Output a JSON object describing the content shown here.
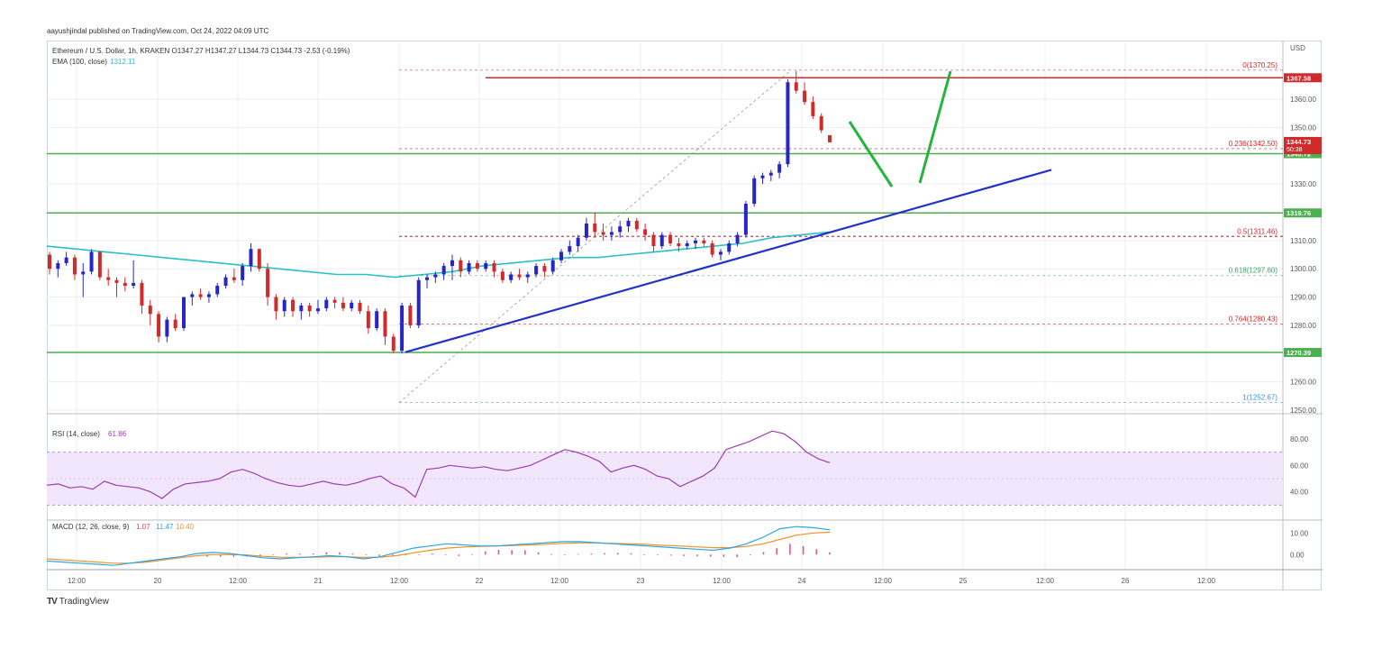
{
  "header": {
    "publisher": "aayushjindal published on TradingView.com, Oct 24, 2022 04:09 UTC"
  },
  "footer": {
    "logo_mark": "TV",
    "logo_text": "TradingView"
  },
  "colors": {
    "bull": "#2626c8",
    "bear": "#d12a2a",
    "ema": "#2bc0c8",
    "green_level": "#4caf50",
    "trend_line": "#2431c8",
    "projection": "#27b33f",
    "rsi": "#9c3eb0",
    "rsi_band": "#f1e6fb",
    "macd": "#2aa5e6",
    "signal": "#f39125",
    "hist": "#e0405a",
    "fib_red": "#d12a2a",
    "fib_green": "#3aa86b",
    "fib_blue": "#3d8de8"
  },
  "chart_data": [
    {
      "type": "candlestick",
      "title": "Ethereum / U.S. Dollar, 1h, KRAKEN",
      "ohlc_label": "O1347.27 H1347.27 L1344.73 C1344.73 -2.53 (-0.19%)",
      "currency": "USD",
      "indicator": {
        "name": "EMA (100, close)",
        "value": "1312.11"
      },
      "ylim": [
        1250,
        1375
      ],
      "y_ticks": [
        "1360.00",
        "1350.00",
        "1330.00",
        "1310.00",
        "1300.00",
        "1290.00",
        "1280.00",
        "1260.00",
        "1250.00"
      ],
      "x_ticks": [
        "12:00",
        "20",
        "12:00",
        "21",
        "12:00",
        "22",
        "12:00",
        "23",
        "12:00",
        "24",
        "12:00",
        "25",
        "12:00",
        "26",
        "12:00"
      ],
      "candles": [
        [
          1305,
          1306,
          1298,
          1300
        ],
        [
          1300,
          1303,
          1297,
          1302
        ],
        [
          1302,
          1306,
          1301,
          1304
        ],
        [
          1304,
          1305,
          1296,
          1298
        ],
        [
          1298,
          1302,
          1290,
          1299
        ],
        [
          1299,
          1307,
          1298,
          1306
        ],
        [
          1306,
          1306,
          1296,
          1297
        ],
        [
          1297,
          1300,
          1294,
          1296
        ],
        [
          1296,
          1297,
          1290,
          1295
        ],
        [
          1295,
          1297,
          1292,
          1294
        ],
        [
          1294,
          1303,
          1293,
          1295
        ],
        [
          1295,
          1296,
          1284,
          1287
        ],
        [
          1287,
          1289,
          1280,
          1284
        ],
        [
          1284,
          1285,
          1274,
          1276
        ],
        [
          1276,
          1283,
          1274,
          1282
        ],
        [
          1282,
          1284,
          1278,
          1279
        ],
        [
          1279,
          1290,
          1278,
          1290
        ],
        [
          1290,
          1292,
          1287,
          1291
        ],
        [
          1291,
          1293,
          1289,
          1290
        ],
        [
          1290,
          1292,
          1288,
          1291
        ],
        [
          1291,
          1295,
          1290,
          1294
        ],
        [
          1294,
          1298,
          1293,
          1297
        ],
        [
          1297,
          1300,
          1295,
          1296
        ],
        [
          1296,
          1302,
          1294,
          1301
        ],
        [
          1301,
          1309,
          1299,
          1307
        ],
        [
          1307,
          1307,
          1299,
          1300
        ],
        [
          1300,
          1302,
          1287,
          1290
        ],
        [
          1290,
          1291,
          1282,
          1285
        ],
        [
          1285,
          1290,
          1283,
          1289
        ],
        [
          1289,
          1290,
          1283,
          1285
        ],
        [
          1285,
          1288,
          1282,
          1287
        ],
        [
          1287,
          1288,
          1283,
          1285
        ],
        [
          1285,
          1289,
          1284,
          1286
        ],
        [
          1286,
          1290,
          1285,
          1289
        ],
        [
          1289,
          1290,
          1286,
          1288
        ],
        [
          1288,
          1290,
          1285,
          1286
        ],
        [
          1286,
          1289,
          1285,
          1288
        ],
        [
          1288,
          1289,
          1284,
          1285
        ],
        [
          1285,
          1287,
          1277,
          1279
        ],
        [
          1279,
          1286,
          1278,
          1285
        ],
        [
          1285,
          1286,
          1273,
          1276
        ],
        [
          1276,
          1277,
          1270,
          1271
        ],
        [
          1271,
          1288,
          1270,
          1287
        ],
        [
          1287,
          1288,
          1279,
          1280
        ],
        [
          1280,
          1297,
          1279,
          1296
        ],
        [
          1296,
          1298,
          1293,
          1297
        ],
        [
          1297,
          1299,
          1295,
          1298
        ],
        [
          1298,
          1302,
          1296,
          1301
        ],
        [
          1301,
          1305,
          1296,
          1303
        ],
        [
          1303,
          1304,
          1297,
          1299
        ],
        [
          1299,
          1303,
          1298,
          1302
        ],
        [
          1302,
          1303,
          1299,
          1300
        ],
        [
          1300,
          1303,
          1299,
          1302
        ],
        [
          1302,
          1303,
          1297,
          1299
        ],
        [
          1299,
          1300,
          1295,
          1296
        ],
        [
          1296,
          1299,
          1295,
          1298
        ],
        [
          1298,
          1300,
          1296,
          1297
        ],
        [
          1297,
          1299,
          1295,
          1298
        ],
        [
          1298,
          1302,
          1297,
          1301
        ],
        [
          1301,
          1302,
          1297,
          1299
        ],
        [
          1299,
          1304,
          1298,
          1303
        ],
        [
          1303,
          1307,
          1302,
          1306
        ],
        [
          1306,
          1310,
          1305,
          1308
        ],
        [
          1308,
          1312,
          1306,
          1311
        ],
        [
          1311,
          1318,
          1310,
          1316
        ],
        [
          1316,
          1320,
          1311,
          1313
        ],
        [
          1313,
          1316,
          1310,
          1312
        ],
        [
          1312,
          1315,
          1310,
          1313
        ],
        [
          1313,
          1317,
          1311,
          1315
        ],
        [
          1315,
          1318,
          1313,
          1317
        ],
        [
          1317,
          1318,
          1313,
          1314
        ],
        [
          1314,
          1316,
          1310,
          1312
        ],
        [
          1312,
          1313,
          1306,
          1308
        ],
        [
          1308,
          1313,
          1307,
          1312
        ],
        [
          1312,
          1313,
          1308,
          1309
        ],
        [
          1309,
          1311,
          1306,
          1308
        ],
        [
          1308,
          1310,
          1307,
          1309
        ],
        [
          1309,
          1311,
          1307,
          1310
        ],
        [
          1310,
          1311,
          1308,
          1309
        ],
        [
          1309,
          1310,
          1304,
          1305
        ],
        [
          1305,
          1307,
          1303,
          1306
        ],
        [
          1306,
          1310,
          1305,
          1309
        ],
        [
          1309,
          1313,
          1308,
          1312
        ],
        [
          1312,
          1324,
          1311,
          1323
        ],
        [
          1323,
          1333,
          1322,
          1332
        ],
        [
          1332,
          1334,
          1330,
          1333
        ],
        [
          1333,
          1335,
          1331,
          1334
        ],
        [
          1334,
          1338,
          1332,
          1337
        ],
        [
          1337,
          1367,
          1336,
          1366
        ],
        [
          1366,
          1370,
          1362,
          1363
        ],
        [
          1363,
          1366,
          1358,
          1359
        ],
        [
          1359,
          1361,
          1353,
          1354
        ],
        [
          1354,
          1355,
          1348,
          1349
        ],
        [
          1347.27,
          1347.27,
          1344.73,
          1344.73
        ]
      ],
      "ema_values": [
        1308,
        1307,
        1306,
        1305,
        1304,
        1303,
        1302,
        1301,
        1300,
        1299,
        1298,
        1298,
        1297,
        1298,
        1299,
        1301,
        1302,
        1303,
        1304,
        1304,
        1305,
        1306,
        1307,
        1308,
        1309,
        1311,
        1312,
        1313
      ],
      "horizontal_levels": [
        {
          "value": 1367.58,
          "label": "1367.58",
          "style": "resistance"
        },
        {
          "value": 1340.72,
          "label": "1340.72",
          "style": "green"
        },
        {
          "value": 1319.76,
          "label": "1319.76",
          "style": "green"
        },
        {
          "value": 1270.39,
          "label": "1270.39",
          "style": "green"
        }
      ],
      "price_tag": {
        "price": "1344.73",
        "countdown": "50:38"
      },
      "fibonacci": [
        {
          "ratio": "0",
          "value": 1370.25,
          "label": "0(1370.25)"
        },
        {
          "ratio": "0.236",
          "value": 1342.5,
          "label": "0.236(1342.50)"
        },
        {
          "ratio": "0.5",
          "value": 1311.46,
          "label": "0.5(1311.46)"
        },
        {
          "ratio": "0.618",
          "value": 1297.6,
          "label": "0.618(1297.60)"
        },
        {
          "ratio": "0.764",
          "value": 1280.43,
          "label": "0.764(1280.43)"
        },
        {
          "ratio": "1",
          "value": 1252.67,
          "label": "1(1252.67)"
        }
      ],
      "trend_line": {
        "from": [
          1270.5
        ],
        "to": [
          1335
        ]
      }
    },
    {
      "type": "line",
      "title": "RSI (14, close)",
      "value": "61.86",
      "ylim": [
        20,
        95
      ],
      "y_ticks": [
        "80.00",
        "60.00",
        "40.00"
      ],
      "band": [
        30,
        70
      ],
      "values": [
        45,
        46,
        43,
        44,
        42,
        48,
        45,
        44,
        43,
        40,
        35,
        42,
        46,
        47,
        48,
        50,
        55,
        57,
        54,
        50,
        47,
        45,
        44,
        46,
        48,
        46,
        45,
        47,
        50,
        52,
        46,
        43,
        36,
        57,
        58,
        60,
        59,
        58,
        59,
        57,
        56,
        58,
        60,
        64,
        68,
        72,
        70,
        67,
        63,
        55,
        58,
        60,
        57,
        52,
        50,
        44,
        48,
        52,
        58,
        72,
        75,
        78,
        82,
        86,
        84,
        78,
        70,
        65,
        62
      ]
    },
    {
      "type": "line",
      "title": "MACD (12, 26, close, 9)",
      "values_label": [
        "1.07",
        "11.47",
        "10.40"
      ],
      "ylim": [
        -7,
        16
      ],
      "y_ticks": [
        "10.00",
        "0.00"
      ],
      "macd": [
        -3,
        -3.5,
        -4,
        -4.5,
        -5,
        -4,
        -3,
        -2,
        -1,
        0.5,
        1,
        0.5,
        -0.5,
        -1.5,
        -2,
        -1.5,
        -1,
        -0.5,
        -1,
        -2,
        -1,
        1,
        3,
        4,
        5,
        4.5,
        4,
        4,
        4.5,
        5,
        5.5,
        6,
        6,
        5.5,
        5,
        4.5,
        4,
        3.5,
        3,
        2.5,
        2,
        3,
        5,
        8,
        12,
        13,
        12.5,
        11.47
      ],
      "signal": [
        -2,
        -2.5,
        -3,
        -3.5,
        -4,
        -4,
        -3.5,
        -2.5,
        -1.5,
        -0.5,
        0,
        0,
        -0.2,
        -0.8,
        -1.2,
        -1.3,
        -1.2,
        -1,
        -1,
        -1.3,
        -1.2,
        -0.5,
        0.8,
        2,
        3,
        3.5,
        3.8,
        4,
        4.2,
        4.5,
        4.8,
        5.2,
        5.4,
        5.4,
        5.2,
        5,
        4.7,
        4.3,
        4,
        3.6,
        3.2,
        3.2,
        3.8,
        5,
        7,
        9,
        10,
        10.4
      ],
      "histogram": [
        -1,
        -1,
        -1,
        -1,
        -1,
        0,
        0.5,
        0.5,
        0.5,
        1,
        1,
        0.5,
        -0.3,
        -0.7,
        -0.8,
        -0.2,
        0.2,
        0.5,
        0,
        -0.7,
        0.2,
        1.5,
        2.2,
        2,
        2,
        1,
        0.2,
        0,
        0.3,
        0.5,
        0.7,
        0.8,
        0.6,
        0.1,
        -0.2,
        -0.5,
        -0.7,
        -0.8,
        -1,
        -1.1,
        -1.2,
        -0.2,
        1.2,
        3,
        5,
        4,
        2.5,
        1.07
      ]
    }
  ]
}
